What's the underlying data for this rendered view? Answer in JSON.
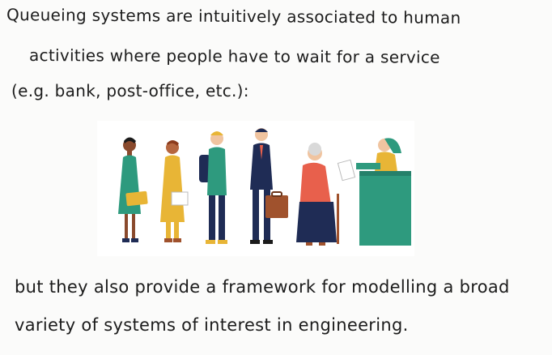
{
  "intro": {
    "line1": "Queueing systems are intuitively associated to human",
    "line2": "activities where people have to wait for a service",
    "line3": "(e.g. bank, post-office, etc.):"
  },
  "outro": {
    "line1": "but they also provide a framework for modelling a broad",
    "line2": "variety of systems of interest in engineering."
  },
  "illustration": {
    "subject": "people-waiting-in-queue",
    "colors": {
      "teal": "#2e9a7e",
      "yellow": "#e8b536",
      "navy": "#1f2c55",
      "coral": "#e8604c",
      "skin_dark": "#8a4a2d",
      "skin_light": "#f0c4a0",
      "brown": "#a0522d"
    }
  }
}
